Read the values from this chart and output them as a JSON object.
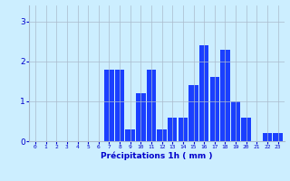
{
  "hours": [
    0,
    1,
    2,
    3,
    4,
    5,
    6,
    7,
    8,
    9,
    10,
    11,
    12,
    13,
    14,
    15,
    16,
    17,
    18,
    19,
    20,
    21,
    22,
    23
  ],
  "values": [
    0,
    0,
    0,
    0,
    0,
    0,
    0,
    1.8,
    1.8,
    0.3,
    1.2,
    1.8,
    0.3,
    0.6,
    0.6,
    1.4,
    2.4,
    1.6,
    2.3,
    1.0,
    0.6,
    0,
    0.2,
    0.2
  ],
  "bar_color": "#1a3fff",
  "background_color": "#cceeff",
  "grid_color": "#aabbcc",
  "xlabel": "Précipitations 1h ( mm )",
  "xlabel_color": "#0000cc",
  "tick_color": "#0000cc",
  "ylim": [
    0,
    3.4
  ],
  "yticks": [
    0,
    1,
    2,
    3
  ]
}
